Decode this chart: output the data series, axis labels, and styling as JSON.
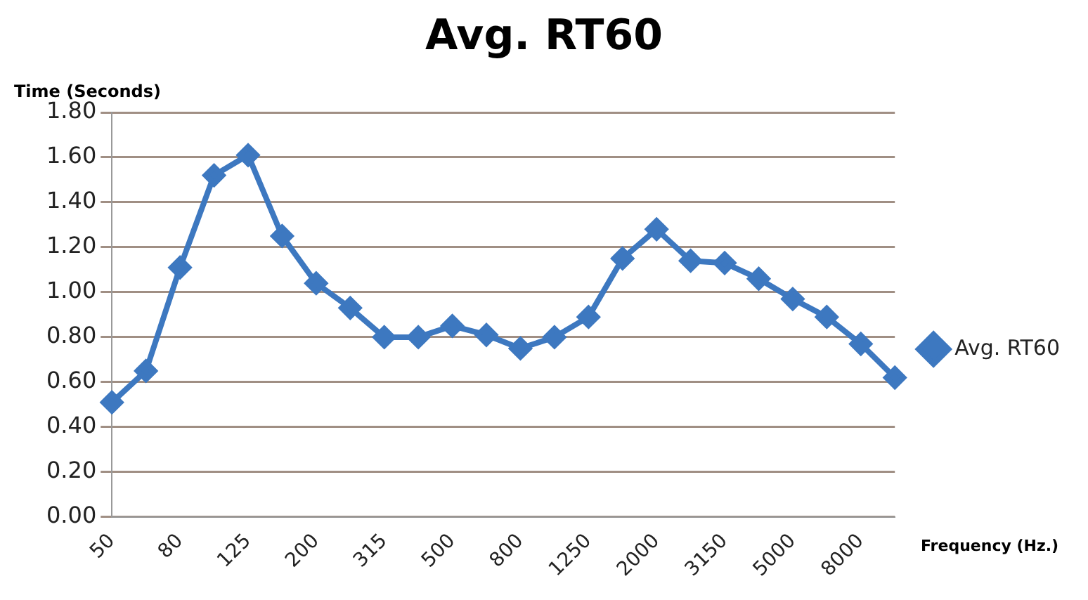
{
  "chart_data": {
    "type": "line",
    "title": "Avg. RT60",
    "xlabel": "Frequency (Hz.)",
    "ylabel": "Time (Seconds)",
    "categories": [
      "50",
      null,
      "80",
      null,
      "125",
      null,
      "200",
      null,
      "315",
      null,
      "500",
      null,
      "800",
      null,
      "1250",
      null,
      "2000",
      null,
      "3150",
      null,
      "5000",
      null,
      "8000",
      null
    ],
    "series": [
      {
        "name": "Avg. RT60",
        "color": "#3d78c0",
        "values": [
          0.51,
          0.65,
          1.11,
          1.52,
          1.61,
          1.25,
          1.04,
          0.93,
          0.8,
          0.8,
          0.85,
          0.81,
          0.75,
          0.8,
          0.89,
          1.15,
          1.28,
          1.14,
          1.13,
          1.06,
          0.97,
          0.89,
          0.77,
          0.62
        ]
      }
    ],
    "ylim": [
      0,
      1.8
    ],
    "yticks": [
      {
        "value": 0,
        "label": "0.00"
      },
      {
        "value": 0.2,
        "label": "0.20"
      },
      {
        "value": 0.4,
        "label": "0.40"
      },
      {
        "value": 0.6,
        "label": "0.60"
      },
      {
        "value": 0.8,
        "label": "0.80"
      },
      {
        "value": 1,
        "label": "1.00"
      },
      {
        "value": 1.2,
        "label": "1.20"
      },
      {
        "value": 1.4,
        "label": "1.40"
      },
      {
        "value": 1.6,
        "label": "1.60"
      },
      {
        "value": 1.8,
        "label": "1.80"
      }
    ],
    "grid": "y",
    "legend": "right",
    "marker": "diamond",
    "line_style": "solid"
  }
}
